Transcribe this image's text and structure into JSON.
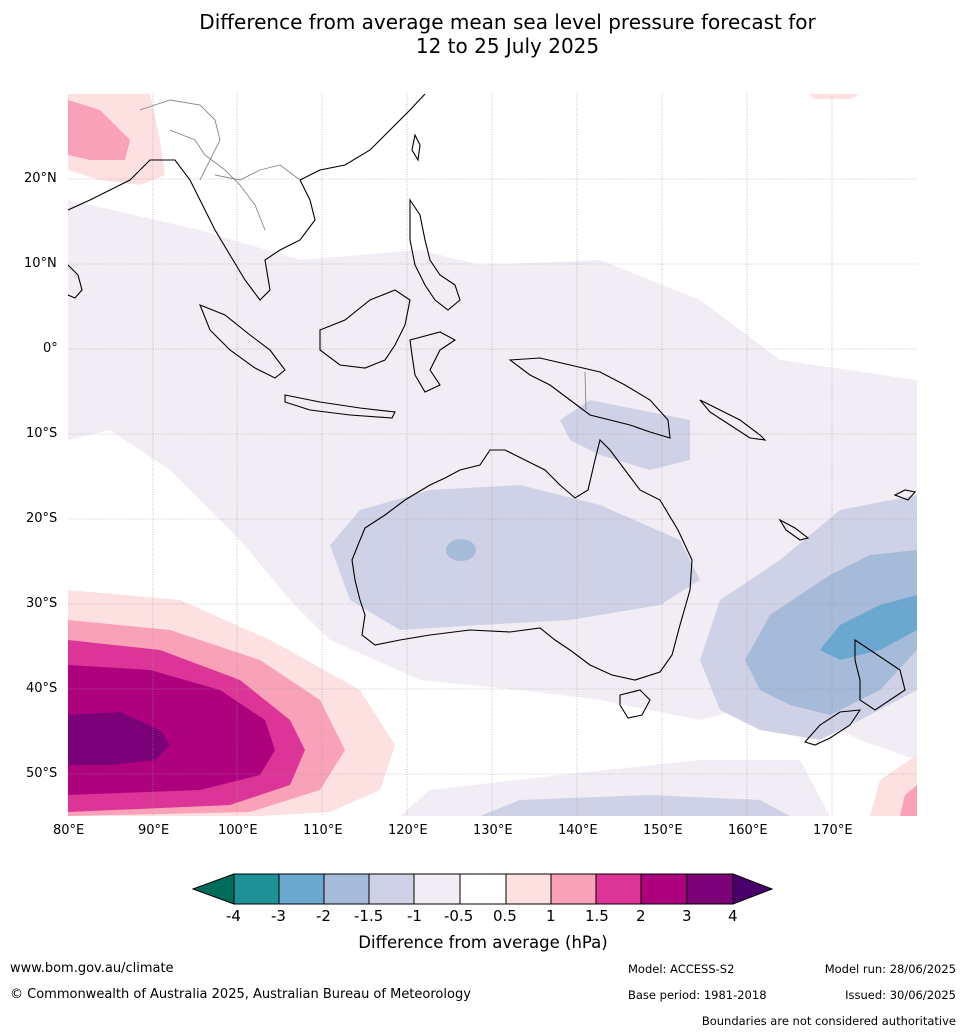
{
  "title_line1": "Difference from average mean sea level pressure forecast for",
  "title_line2": "12 to 25 July 2025",
  "lat_labels": [
    "20°N",
    "10°N",
    "0°",
    "10°S",
    "20°S",
    "30°S",
    "40°S",
    "50°S"
  ],
  "lon_labels": [
    "80°E",
    "90°E",
    "100°E",
    "110°E",
    "120°E",
    "130°E",
    "140°E",
    "150°E",
    "160°E",
    "170°E"
  ],
  "legend": {
    "title": "Difference from average (hPa)",
    "ticks": [
      "-4",
      "-3",
      "-2",
      "-1.5",
      "-1",
      "-0.5",
      "0.5",
      "1",
      "1.5",
      "2",
      "3",
      "4"
    ],
    "colors": [
      "#006d5b",
      "#1e9196",
      "#6aa8cf",
      "#a5bbd9",
      "#cfd2e6",
      "#f2ecf5",
      "#ffffff",
      "#fde0e0",
      "#f9a1b8",
      "#dd3497",
      "#ae017e",
      "#7a0177",
      "#49006a"
    ]
  },
  "footer": {
    "url": "www.bom.gov.au/climate",
    "copyright": "© Commonwealth of Australia 2025, Australian Bureau of Meteorology",
    "model": "Model: ACCESS-S2",
    "base_period": "Base period: 1981-2018",
    "model_run": "Model run: 28/06/2025",
    "issued": "Issued: 30/06/2025",
    "boundaries": "Boundaries are not considered authoritative"
  }
}
